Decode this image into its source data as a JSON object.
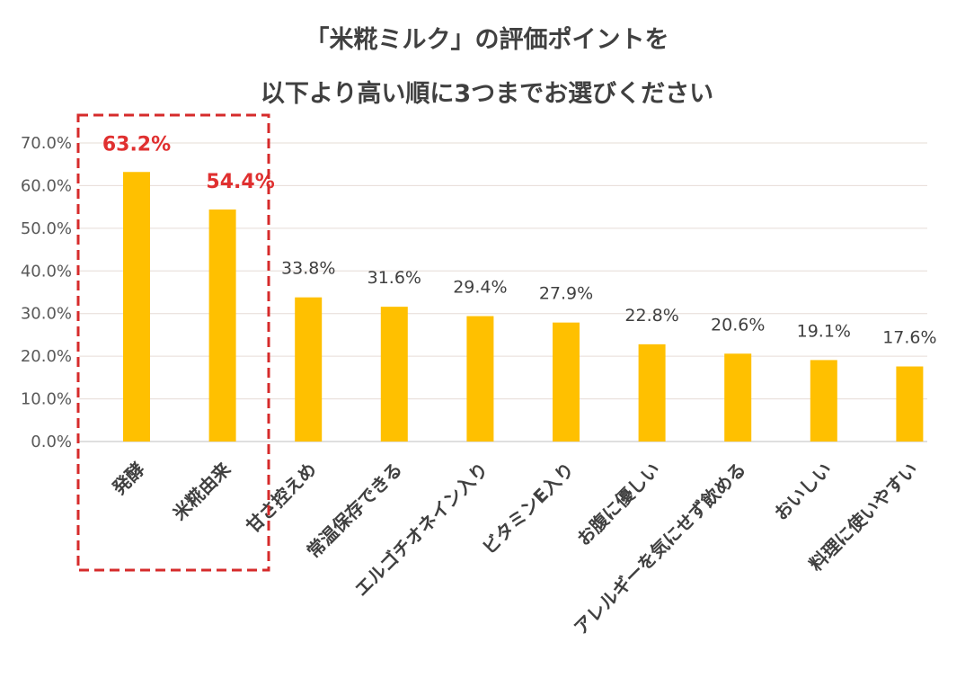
{
  "title_line1": "「米糀ミルク」の評価ポイントを",
  "title_line2": "以下より高い順に3つまでお選びください",
  "chart_data": {
    "type": "bar",
    "title": "「米糀ミルク」の評価ポイントを 以下より高い順に3つまでお選びください",
    "categories": [
      "発酵",
      "米糀由来",
      "甘さ控えめ",
      "常温保存できる",
      "エルゴチオネイン入り",
      "ビタミンE入り",
      "お腹に優しい",
      "アレルギーを気にせず飲める",
      "おいしい",
      "料理に使いやすい"
    ],
    "values": [
      63.2,
      54.4,
      33.8,
      31.6,
      29.4,
      27.9,
      22.8,
      20.6,
      19.1,
      17.6
    ],
    "value_labels": [
      "63.2%",
      "54.4%",
      "33.8%",
      "31.6%",
      "29.4%",
      "27.9%",
      "22.8%",
      "20.6%",
      "19.1%",
      "17.6%"
    ],
    "y_ticks": [
      "0.0%",
      "10.0%",
      "20.0%",
      "30.0%",
      "40.0%",
      "50.0%",
      "60.0%",
      "70.0%"
    ],
    "ylim": [
      0,
      70
    ],
    "highlight_indices": [
      0,
      1
    ],
    "bar_color": "#ffc000",
    "highlight_label_color": "#e03030",
    "highlight_box_color": "#d62b2b",
    "grid": true
  }
}
